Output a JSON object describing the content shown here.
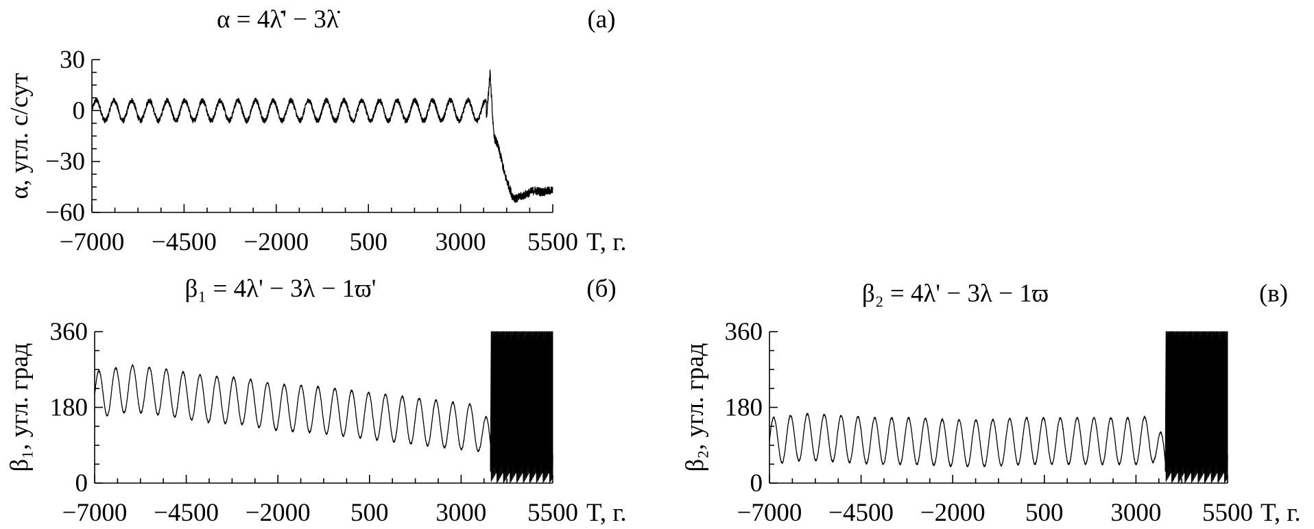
{
  "chart_data": [
    {
      "id": "a",
      "type": "line",
      "tag": "(a)",
      "title": "α = 4λ̇' − 3λ̇",
      "ylabel": "α, угл. с/сут",
      "xlabel": "T, г.",
      "xlim": [
        -7000,
        5500
      ],
      "ylim": [
        -60,
        30
      ],
      "xticks": [
        -7000,
        -4500,
        -2000,
        500,
        3000,
        5500
      ],
      "xtick_labels": [
        "−7000",
        "−4500",
        "−2000",
        "500",
        "3000",
        "5500"
      ],
      "yticks": [
        -60,
        -30,
        0,
        30
      ],
      "ytick_labels": [
        "−60",
        "−30",
        "0",
        "30"
      ],
      "series": [
        {
          "x": [
            -7000,
            -6800,
            -6600,
            -6400,
            -6200,
            -6000,
            -5500,
            -5000,
            -4500,
            -4000,
            -3500,
            -3000,
            -2500,
            -2000,
            -1500,
            -1000,
            -500,
            0,
            500,
            1000,
            1500,
            2000,
            2500,
            3000,
            3300,
            3500,
            3700,
            3800,
            3900,
            4000,
            4100,
            4200,
            4300,
            4400,
            4500,
            4700,
            5000,
            5200,
            5500
          ],
          "y": [
            5,
            0,
            -5,
            5,
            -5,
            8,
            -4,
            6,
            -5,
            5,
            -4,
            4,
            -3,
            3,
            -3,
            3,
            -2,
            4,
            -4,
            5,
            -5,
            6,
            -6,
            7,
            2,
            8,
            -5,
            22,
            -15,
            -20,
            -28,
            -38,
            -44,
            -50,
            -52,
            -50,
            -47,
            -48,
            -47
          ]
        }
      ]
    },
    {
      "id": "b",
      "type": "line",
      "tag": "(б)",
      "title": "β₁ = 4λ' − 3λ − 1ϖ'",
      "ylabel": "β₁, угл. град",
      "xlabel": "T, г.",
      "xlim": [
        -7000,
        5500
      ],
      "ylim": [
        0,
        360
      ],
      "xticks": [
        -7000,
        -4500,
        -2000,
        500,
        3000,
        5500
      ],
      "xtick_labels": [
        "−7000",
        "−4500",
        "−2000",
        "500",
        "3000",
        "5500"
      ],
      "yticks": [
        0,
        180,
        360
      ],
      "ytick_labels": [
        "0",
        "180",
        "360"
      ],
      "series": [
        {
          "x": [
            -7000,
            -6000,
            -5000,
            -4000,
            -3000,
            -2000,
            -1000,
            0,
            1000,
            2000,
            3000,
            3500,
            3900
          ],
          "y": [
            210,
            225,
            215,
            200,
            195,
            180,
            175,
            165,
            155,
            145,
            135,
            130,
            70
          ]
        }
      ]
    },
    {
      "id": "v",
      "type": "line",
      "tag": "(в)",
      "title": "β₂ = 4λ' − 3λ − 1ϖ",
      "ylabel": "β₂, угл. град",
      "xlabel": "T, г.",
      "xlim": [
        -7000,
        5500
      ],
      "ylim": [
        0,
        360
      ],
      "xticks": [
        -7000,
        -4500,
        -2000,
        500,
        3000,
        5500
      ],
      "xtick_labels": [
        "−7000",
        "−4500",
        "−2000",
        "500",
        "3000",
        "5500"
      ],
      "yticks": [
        0,
        180,
        360
      ],
      "ytick_labels": [
        "0",
        "180",
        "360"
      ],
      "series": [
        {
          "x": [
            -7000,
            -6000,
            -5000,
            -4000,
            -3000,
            -2000,
            -1000,
            0,
            1000,
            2000,
            3000,
            3500,
            3900
          ],
          "y": [
            100,
            110,
            105,
            100,
            100,
            95,
            95,
            100,
            100,
            100,
            100,
            105,
            20
          ]
        }
      ]
    }
  ]
}
